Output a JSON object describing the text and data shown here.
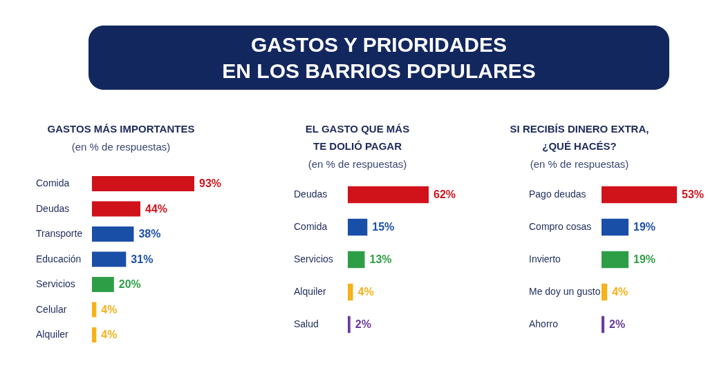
{
  "chart_data": [
    {
      "type": "other",
      "title": "GASTOS Y PRIORIDADES\nEN LOS BARRIOS POPULARES"
    },
    {
      "type": "bar",
      "orientation": "horizontal",
      "title": "GASTOS MÁS IMPORTANTES",
      "subtitle": "(en % de respuestas)",
      "categories": [
        "Comida",
        "Deudas",
        "Transporte",
        "Educación",
        "Servicios",
        "Celular",
        "Alquiler"
      ],
      "values": [
        93,
        44,
        38,
        31,
        20,
        4,
        4
      ],
      "value_labels": [
        "93%",
        "44%",
        "38%",
        "31%",
        "20%",
        "4%",
        "4%"
      ],
      "colors": [
        "#d0121b",
        "#d0121b",
        "#1a4fa8",
        "#1a4fa8",
        "#2e9e46",
        "#f5b21a",
        "#f5b21a"
      ]
    },
    {
      "type": "bar",
      "orientation": "horizontal",
      "title": "EL GASTO QUE MÁS\nTE DOLIÓ PAGAR",
      "subtitle": "(en % de respuestas)",
      "categories": [
        "Deudas",
        "Comida",
        "Servicios",
        "Alquiler",
        "Salud"
      ],
      "values": [
        62,
        15,
        13,
        4,
        2
      ],
      "value_labels": [
        "62%",
        "15%",
        "13%",
        "4%",
        "2%"
      ],
      "colors": [
        "#d0121b",
        "#1a4fa8",
        "#2e9e46",
        "#f5b21a",
        "#6a3a9e"
      ]
    },
    {
      "type": "bar",
      "orientation": "horizontal",
      "title": "SI RECIBÍS DINERO EXTRA,\n¿QUÉ HACÉS?",
      "subtitle": "(en % de respuestas)",
      "categories": [
        "Pago deudas",
        "Compro cosas",
        "Invierto",
        "Me doy un gusto",
        "Ahorro"
      ],
      "values": [
        53,
        19,
        19,
        4,
        2
      ],
      "value_labels": [
        "53%",
        "19%",
        "19%",
        "4%",
        "2%"
      ],
      "colors": [
        "#d0121b",
        "#1a4fa8",
        "#2e9e46",
        "#f5b21a",
        "#6a3a9e"
      ]
    }
  ]
}
